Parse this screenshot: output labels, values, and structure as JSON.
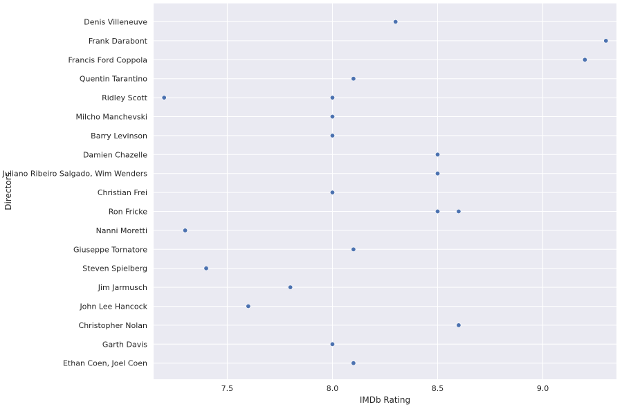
{
  "chart_data": {
    "type": "scatter",
    "title": "",
    "xlabel": "IMDb Rating",
    "ylabel": "Directors",
    "xlim": [
      7.15,
      9.35
    ],
    "xticks": [
      "7.5",
      "8.0",
      "8.5",
      "9.0"
    ],
    "grid": true,
    "background": "#eaeaf2",
    "grid_color": "#ffffff",
    "point_color": "#4c72b0",
    "categories": [
      "Denis Villeneuve",
      "Frank Darabont",
      "Francis Ford Coppola",
      "Quentin Tarantino",
      "Ridley Scott",
      "Milcho Manchevski",
      "Barry Levinson",
      "Damien Chazelle",
      "Juliano Ribeiro Salgado, Wim Wenders",
      "Christian Frei",
      "Ron Fricke",
      "Nanni Moretti",
      "Giuseppe Tornatore",
      "Steven Spielberg",
      "Jim Jarmusch",
      "John Lee Hancock",
      "Christopher Nolan",
      "Garth Davis",
      "Ethan Coen, Joel Coen"
    ],
    "points": [
      {
        "director": "Denis Villeneuve",
        "rating": 8.3
      },
      {
        "director": "Frank Darabont",
        "rating": 9.3
      },
      {
        "director": "Francis Ford Coppola",
        "rating": 9.2
      },
      {
        "director": "Quentin Tarantino",
        "rating": 8.1
      },
      {
        "director": "Ridley Scott",
        "rating": 7.2
      },
      {
        "director": "Ridley Scott",
        "rating": 8.0
      },
      {
        "director": "Milcho Manchevski",
        "rating": 8.0
      },
      {
        "director": "Barry Levinson",
        "rating": 8.0
      },
      {
        "director": "Damien Chazelle",
        "rating": 8.5
      },
      {
        "director": "Juliano Ribeiro Salgado, Wim Wenders",
        "rating": 8.5
      },
      {
        "director": "Christian Frei",
        "rating": 8.0
      },
      {
        "director": "Ron Fricke",
        "rating": 8.5
      },
      {
        "director": "Ron Fricke",
        "rating": 8.6
      },
      {
        "director": "Nanni Moretti",
        "rating": 7.3
      },
      {
        "director": "Giuseppe Tornatore",
        "rating": 8.1
      },
      {
        "director": "Steven Spielberg",
        "rating": 7.4
      },
      {
        "director": "Jim Jarmusch",
        "rating": 7.8
      },
      {
        "director": "John Lee Hancock",
        "rating": 7.6
      },
      {
        "director": "Christopher Nolan",
        "rating": 8.6
      },
      {
        "director": "Garth Davis",
        "rating": 8.0
      },
      {
        "director": "Ethan Coen, Joel Coen",
        "rating": 8.1
      }
    ]
  }
}
